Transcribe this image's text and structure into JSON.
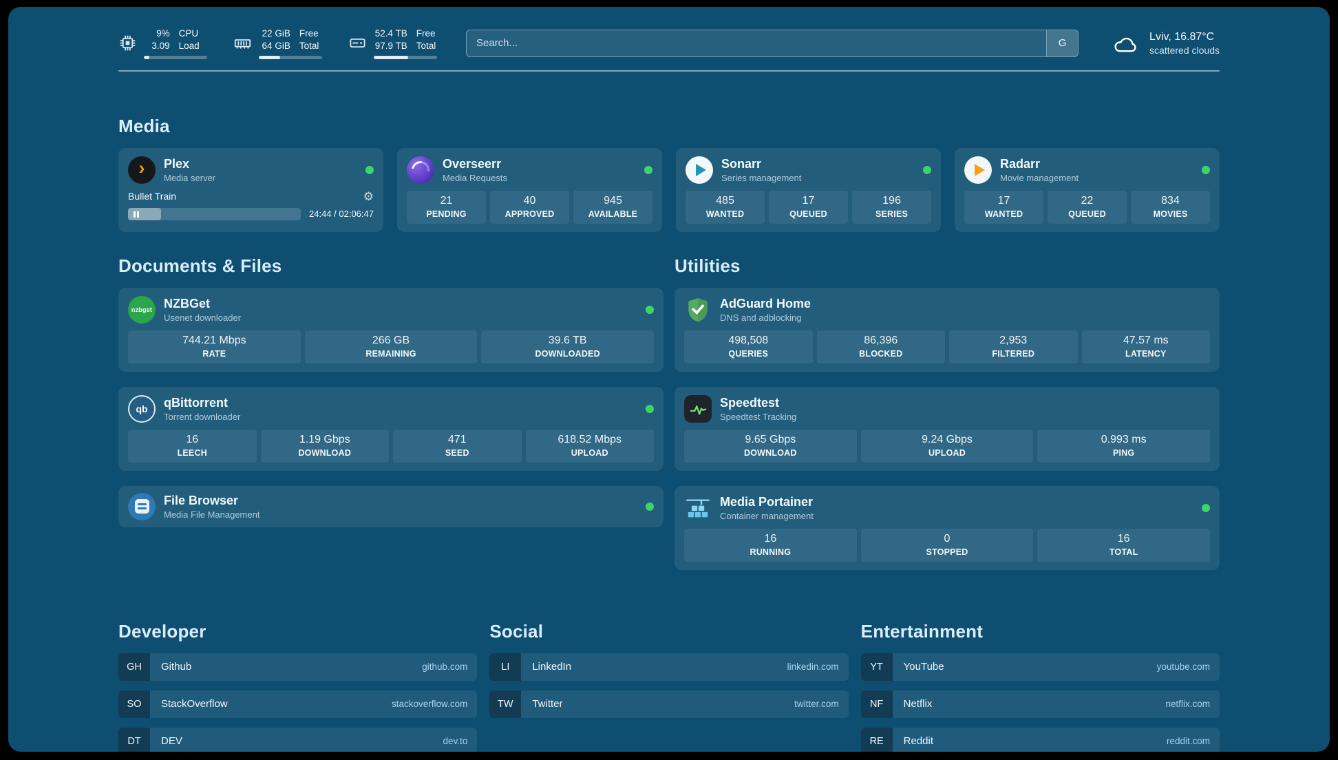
{
  "header": {
    "cpu": {
      "values": [
        "9%",
        "3.09"
      ],
      "labels": [
        "CPU",
        "Load"
      ],
      "progress": 9
    },
    "memory": {
      "values": [
        "22 GiB",
        "64 GiB"
      ],
      "labels": [
        "Free",
        "Total"
      ],
      "progress": 34
    },
    "disk": {
      "values": [
        "52.4 TB",
        "97.9 TB"
      ],
      "labels": [
        "Free",
        "Total"
      ],
      "progress": 54
    },
    "search": {
      "placeholder": "Search...",
      "button_label": "G"
    },
    "weather": {
      "location": "Lviv, 16.87°C",
      "condition": "scattered clouds"
    }
  },
  "sections": {
    "media": "Media",
    "documents": "Documents & Files",
    "utilities": "Utilities",
    "developer": "Developer",
    "social": "Social",
    "entertainment": "Entertainment"
  },
  "apps": {
    "plex": {
      "name": "Plex",
      "subtitle": "Media server",
      "now_playing": "Bullet Train",
      "time": "24:44 / 02:06:47",
      "progress": 19
    },
    "overseerr": {
      "name": "Overseerr",
      "subtitle": "Media Requests",
      "stats": [
        {
          "value": "21",
          "label": "PENDING"
        },
        {
          "value": "40",
          "label": "APPROVED"
        },
        {
          "value": "945",
          "label": "AVAILABLE"
        }
      ]
    },
    "sonarr": {
      "name": "Sonarr",
      "subtitle": "Series management",
      "stats": [
        {
          "value": "485",
          "label": "WANTED"
        },
        {
          "value": "17",
          "label": "QUEUED"
        },
        {
          "value": "196",
          "label": "SERIES"
        }
      ]
    },
    "radarr": {
      "name": "Radarr",
      "subtitle": "Movie management",
      "stats": [
        {
          "value": "17",
          "label": "WANTED"
        },
        {
          "value": "22",
          "label": "QUEUED"
        },
        {
          "value": "834",
          "label": "MOVIES"
        }
      ]
    },
    "nzbget": {
      "name": "NZBGet",
      "subtitle": "Usenet downloader",
      "stats": [
        {
          "value": "744.21 Mbps",
          "label": "RATE"
        },
        {
          "value": "266 GB",
          "label": "REMAINING"
        },
        {
          "value": "39.6 TB",
          "label": "DOWNLOADED"
        }
      ]
    },
    "qbittorrent": {
      "name": "qBittorrent",
      "subtitle": "Torrent downloader",
      "stats": [
        {
          "value": "16",
          "label": "LEECH"
        },
        {
          "value": "1.19 Gbps",
          "label": "DOWNLOAD"
        },
        {
          "value": "471",
          "label": "SEED"
        },
        {
          "value": "618.52 Mbps",
          "label": "UPLOAD"
        }
      ]
    },
    "filebrowser": {
      "name": "File Browser",
      "subtitle": "Media File Management"
    },
    "adguard": {
      "name": "AdGuard Home",
      "subtitle": "DNS and adblocking",
      "stats": [
        {
          "value": "498,508",
          "label": "QUERIES"
        },
        {
          "value": "86,396",
          "label": "BLOCKED"
        },
        {
          "value": "2,953",
          "label": "FILTERED"
        },
        {
          "value": "47.57 ms",
          "label": "LATENCY"
        }
      ]
    },
    "speedtest": {
      "name": "Speedtest",
      "subtitle": "Speedtest Tracking",
      "stats": [
        {
          "value": "9.65 Gbps",
          "label": "DOWNLOAD"
        },
        {
          "value": "9.24 Gbps",
          "label": "UPLOAD"
        },
        {
          "value": "0.993 ms",
          "label": "PING"
        }
      ]
    },
    "portainer": {
      "name": "Media Portainer",
      "subtitle": "Container management",
      "stats": [
        {
          "value": "16",
          "label": "RUNNING"
        },
        {
          "value": "0",
          "label": "STOPPED"
        },
        {
          "value": "16",
          "label": "TOTAL"
        }
      ]
    }
  },
  "bookmarks": {
    "developer": [
      {
        "abbr": "GH",
        "name": "Github",
        "url": "github.com"
      },
      {
        "abbr": "SO",
        "name": "StackOverflow",
        "url": "stackoverflow.com"
      },
      {
        "abbr": "DT",
        "name": "DEV",
        "url": "dev.to"
      }
    ],
    "social": [
      {
        "abbr": "LI",
        "name": "LinkedIn",
        "url": "linkedin.com"
      },
      {
        "abbr": "TW",
        "name": "Twitter",
        "url": "twitter.com"
      }
    ],
    "entertainment": [
      {
        "abbr": "YT",
        "name": "YouTube",
        "url": "youtube.com"
      },
      {
        "abbr": "NF",
        "name": "Netflix",
        "url": "netflix.com"
      },
      {
        "abbr": "RE",
        "name": "Reddit",
        "url": "reddit.com"
      }
    ]
  },
  "icon_glyphs": {
    "gear": "⚙",
    "plex_chevron": "›",
    "nzbget": "nzbget",
    "qbittorrent": "qb"
  },
  "colors": {
    "background": "#0e4e70",
    "status_green": "#3ed46a",
    "link_blue": "#a5d4ef",
    "plex_orange": "#e8a00d",
    "sonarr_blue": "#2193b5",
    "radarr_orange": "#f5a31a",
    "nzbget_green": "#2aa74a",
    "adguard_green": "#57a863",
    "speedtest_dark": "#1f242b",
    "portainer_blue": "#6cc5e9"
  }
}
